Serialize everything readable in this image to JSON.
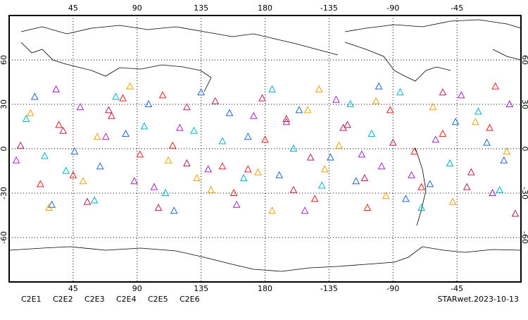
{
  "chart_data": {
    "type": "scatter",
    "xlim": [
      0,
      360
    ],
    "ylim": [
      -90,
      90
    ],
    "xticks": [
      45,
      90,
      135,
      180,
      {
        "value": 225,
        "label": "-135"
      },
      {
        "value": 270,
        "label": "-90"
      },
      {
        "value": 315,
        "label": "-45"
      }
    ],
    "yticks": [
      -60,
      -30,
      0,
      30,
      60
    ],
    "grid": true,
    "series": [
      {
        "name": "C2E1",
        "color": "#00b4c8",
        "x": [
          12,
          40,
          75,
          110,
          150,
          185,
          220,
          255,
          290,
          330,
          25,
          95,
          165,
          240,
          310,
          60,
          200,
          275,
          345,
          130
        ],
        "values": [
          20,
          -15,
          35,
          -30,
          5,
          40,
          -25,
          10,
          -40,
          25,
          -5,
          15,
          -20,
          30,
          -10,
          -35,
          0,
          38,
          -28,
          12
        ]
      },
      {
        "name": "C2E2",
        "color": "#a020c8",
        "x": [
          5,
          50,
          88,
          120,
          160,
          195,
          230,
          262,
          300,
          340,
          33,
          102,
          172,
          248,
          318,
          68,
          208,
          283,
          352,
          140
        ],
        "values": [
          -8,
          28,
          -22,
          14,
          -38,
          18,
          33,
          -12,
          6,
          -30,
          40,
          -26,
          22,
          -4,
          36,
          8,
          -42,
          -18,
          30,
          -14
        ]
      },
      {
        "name": "C2E3",
        "color": "#1e64d2",
        "x": [
          18,
          46,
          82,
          116,
          155,
          190,
          226,
          260,
          296,
          336,
          30,
          98,
          168,
          244,
          314,
          64,
          204,
          279,
          348,
          135
        ],
        "values": [
          35,
          -2,
          10,
          -42,
          24,
          -18,
          -6,
          42,
          -24,
          4,
          -38,
          30,
          8,
          -22,
          18,
          -12,
          26,
          -34,
          -8,
          38
        ]
      },
      {
        "name": "C2E4",
        "color": "#b41e5a",
        "x": [
          8,
          55,
          70,
          125,
          145,
          200,
          235,
          250,
          305,
          325,
          38,
          105,
          178,
          238,
          322,
          72,
          212,
          270,
          356,
          125
        ],
        "values": [
          2,
          -36,
          26,
          -10,
          32,
          -28,
          14,
          -20,
          38,
          -16,
          12,
          -40,
          34,
          16,
          -26,
          22,
          -6,
          4,
          -44,
          28
        ]
      },
      {
        "name": "C2E5",
        "color": "#e61e1e",
        "x": [
          22,
          35,
          92,
          108,
          168,
          180,
          215,
          268,
          285,
          342,
          45,
          115,
          158,
          252,
          305,
          80,
          195,
          290,
          338,
          150
        ],
        "values": [
          -24,
          16,
          -4,
          36,
          -14,
          6,
          -34,
          26,
          -2,
          42,
          -18,
          2,
          -30,
          -40,
          10,
          34,
          20,
          -26,
          14,
          -12
        ]
      },
      {
        "name": "C2E6",
        "color": "#f0a000",
        "x": [
          28,
          62,
          85,
          132,
          142,
          210,
          222,
          258,
          312,
          350,
          15,
          112,
          185,
          232,
          298,
          52,
          218,
          265,
          328,
          175
        ],
        "values": [
          -40,
          8,
          42,
          -20,
          -28,
          26,
          -14,
          32,
          -36,
          -2,
          24,
          -8,
          -42,
          2,
          28,
          -22,
          40,
          -32,
          18,
          -16
        ]
      }
    ],
    "label": "STARwet.2023-10-13"
  }
}
